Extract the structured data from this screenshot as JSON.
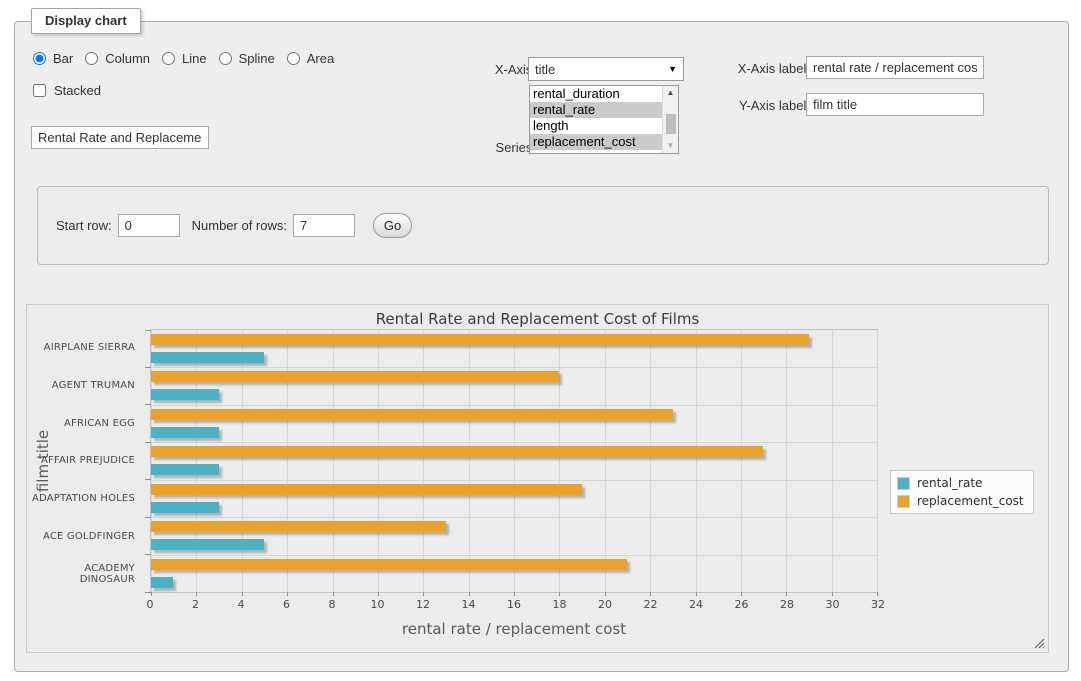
{
  "panel": {
    "legend": "Display chart",
    "chart_types": [
      {
        "label": "Bar",
        "selected": true
      },
      {
        "label": "Column",
        "selected": false
      },
      {
        "label": "Line",
        "selected": false
      },
      {
        "label": "Spline",
        "selected": false
      },
      {
        "label": "Area",
        "selected": false
      }
    ],
    "stacked_label": "Stacked",
    "title_input_value": "Rental Rate and Replacement Cost of Films",
    "x_axis": {
      "label": "X-Axis:",
      "selected": "title"
    },
    "series_select": {
      "label": "Series:",
      "options": [
        {
          "label": "rental_duration",
          "selected": false
        },
        {
          "label": "rental_rate",
          "selected": true
        },
        {
          "label": "length",
          "selected": false
        },
        {
          "label": "replacement_cost",
          "selected": true
        }
      ]
    },
    "x_axis_label": {
      "label": "X-Axis label:",
      "value": "rental rate / replacement cost"
    },
    "y_axis_label": {
      "label": "Y-Axis label:",
      "value": "film title"
    }
  },
  "row_controls": {
    "start_row_label": "Start row:",
    "start_row_value": "0",
    "num_rows_label": "Number of rows:",
    "num_rows_value": "7",
    "go_label": "Go"
  },
  "chart_data": {
    "type": "bar",
    "orientation": "horizontal",
    "title": "Rental Rate and Replacement Cost of Films",
    "categories": [
      "AIRPLANE SIERRA",
      "AGENT TRUMAN",
      "AFRICAN EGG",
      "AFFAIR PREJUDICE",
      "ADAPTATION HOLES",
      "ACE GOLDFINGER",
      "ACADEMY DINOSAUR"
    ],
    "series": [
      {
        "name": "rental_rate",
        "color": "#4bb2c5",
        "values": [
          4.99,
          2.99,
          2.99,
          2.99,
          2.99,
          4.99,
          0.99
        ]
      },
      {
        "name": "replacement_cost",
        "color": "#eaa228",
        "values": [
          28.99,
          17.99,
          22.99,
          26.99,
          18.99,
          12.99,
          20.99
        ]
      }
    ],
    "xlabel": "rental rate / replacement cost",
    "ylabel": "film title",
    "xlim": [
      0,
      32
    ],
    "xticks": [
      0,
      2,
      4,
      6,
      8,
      10,
      12,
      14,
      16,
      18,
      20,
      22,
      24,
      26,
      28,
      30,
      32
    ],
    "grid": true,
    "legend_position": "right",
    "bar_order_in_group": "replacement_cost on top, rental_rate below"
  }
}
